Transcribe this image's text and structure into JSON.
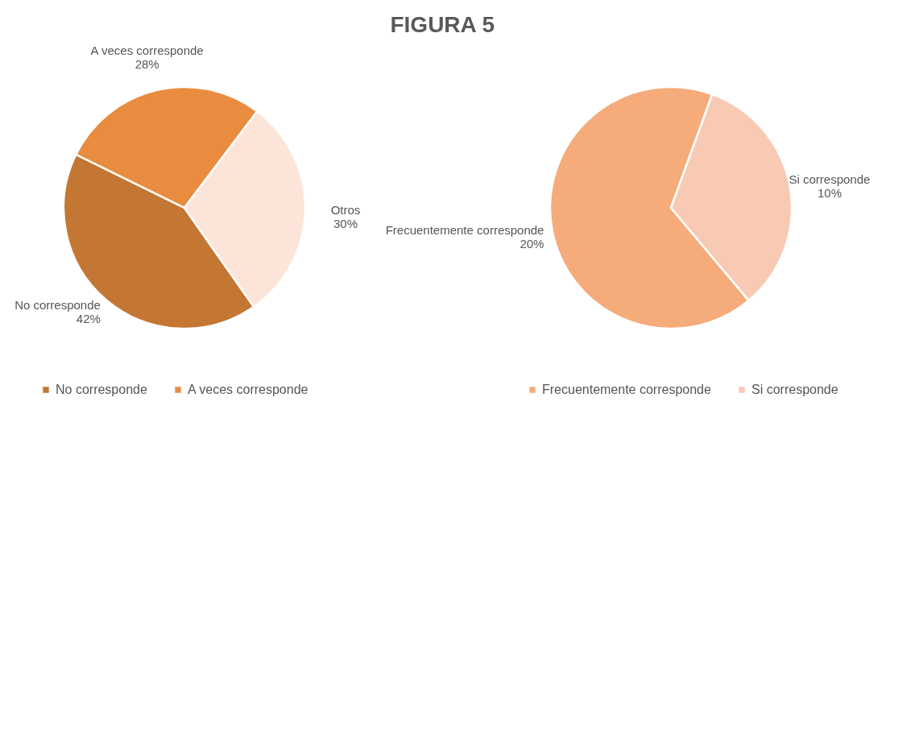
{
  "chart_data": [
    {
      "type": "pie",
      "title": "FIGURA 5",
      "categories": [
        "No corresponde",
        "A veces corresponde",
        "Otros"
      ],
      "values": [
        42,
        28,
        30
      ],
      "value_labels": [
        "42%",
        "28%",
        "30%"
      ],
      "colors": [
        "#c47633",
        "#e98c3f",
        "#fce4d9"
      ],
      "legend": "bottom"
    },
    {
      "type": "pie",
      "categories": [
        "Frecuentemente corresponde",
        "Si corresponde"
      ],
      "values": [
        20,
        10
      ],
      "value_labels": [
        "20%",
        "10%"
      ],
      "colors": [
        "#f6ab7a",
        "#f8cab3"
      ],
      "legend": "bottom"
    }
  ]
}
